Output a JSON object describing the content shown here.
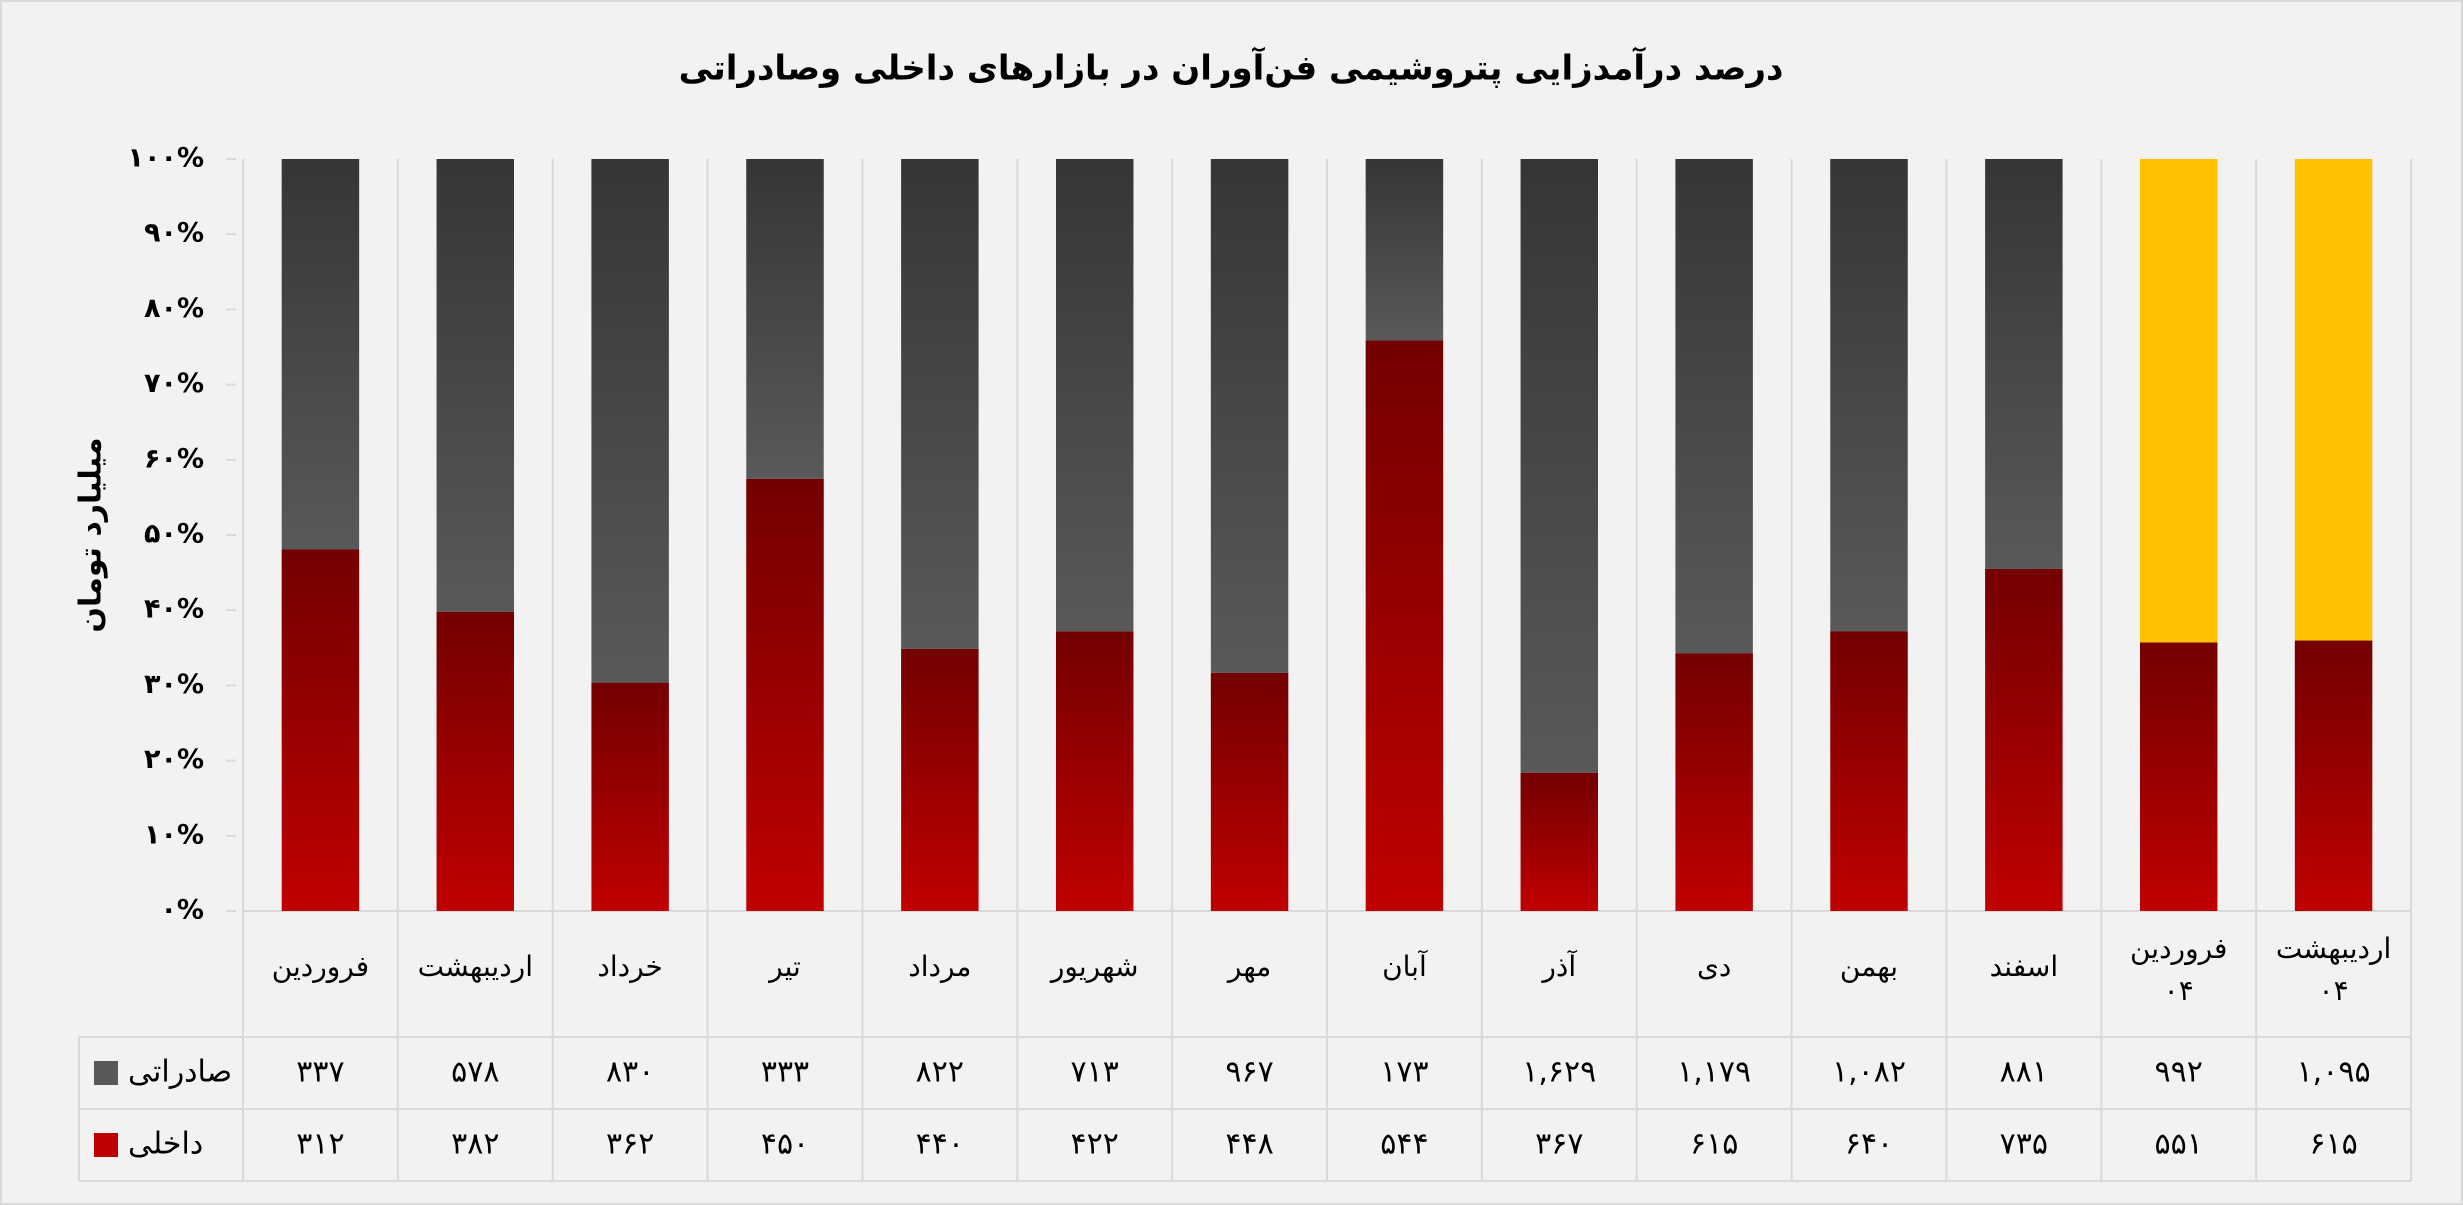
{
  "chart_data": {
    "type": "bar_percent_stacked",
    "title": "درصد درآمدزایی پتروشیمی فن‌آوران در بازارهای داخلی وصادراتی",
    "ylabel": "میلیارد تومان",
    "categories": [
      "فروردین",
      "اردیبهشت",
      "خرداد",
      "تیر",
      "مرداد",
      "شهریور",
      "مهر",
      "آبان",
      "آذر",
      "دی",
      "بهمن",
      "اسفند",
      "فروردین ۰۴",
      "اردیبهشت ۰۴"
    ],
    "series": [
      {
        "name": "صادراتی",
        "color": "#595959",
        "colors": [
          "#595959",
          "#595959",
          "#595959",
          "#595959",
          "#595959",
          "#595959",
          "#595959",
          "#595959",
          "#595959",
          "#595959",
          "#595959",
          "#595959",
          "#ffc000",
          "#ffc000"
        ],
        "values": [
          337,
          578,
          830,
          333,
          822,
          713,
          967,
          173,
          1629,
          1179,
          1082,
          881,
          992,
          1095
        ],
        "value_labels": [
          "۳۳۷",
          "۵۷۸",
          "۸۳۰",
          "۳۳۳",
          "۸۲۲",
          "۷۱۳",
          "۹۶۷",
          "۱۷۳",
          "۱,۶۲۹",
          "۱,۱۷۹",
          "۱,۰۸۲",
          "۸۸۱",
          "۹۹۲",
          "۱,۰۹۵"
        ]
      },
      {
        "name": "داخلی",
        "color": "#c00000",
        "values": [
          312,
          382,
          362,
          450,
          440,
          422,
          448,
          544,
          367,
          615,
          640,
          735,
          551,
          615
        ],
        "value_labels": [
          "۳۱۲",
          "۳۸۲",
          "۳۶۲",
          "۴۵۰",
          "۴۴۰",
          "۴۲۲",
          "۴۴۸",
          "۵۴۴",
          "۳۶۷",
          "۶۱۵",
          "۶۴۰",
          "۷۳۵",
          "۵۵۱",
          "۶۱۵"
        ]
      }
    ],
    "ylim": [
      0,
      100
    ],
    "yticks": [
      {
        "value": 0,
        "label": "۰%"
      },
      {
        "value": 10,
        "label": "۱۰%"
      },
      {
        "value": 20,
        "label": "۲۰%"
      },
      {
        "value": 30,
        "label": "۳۰%"
      },
      {
        "value": 40,
        "label": "۴۰%"
      },
      {
        "value": 50,
        "label": "۵۰%"
      },
      {
        "value": 60,
        "label": "۶۰%"
      },
      {
        "value": 70,
        "label": "۷۰%"
      },
      {
        "value": 80,
        "label": "۸۰%"
      },
      {
        "value": 90,
        "label": "۹۰%"
      },
      {
        "value": 100,
        "label": "۱۰۰%"
      }
    ],
    "grid": false
  }
}
